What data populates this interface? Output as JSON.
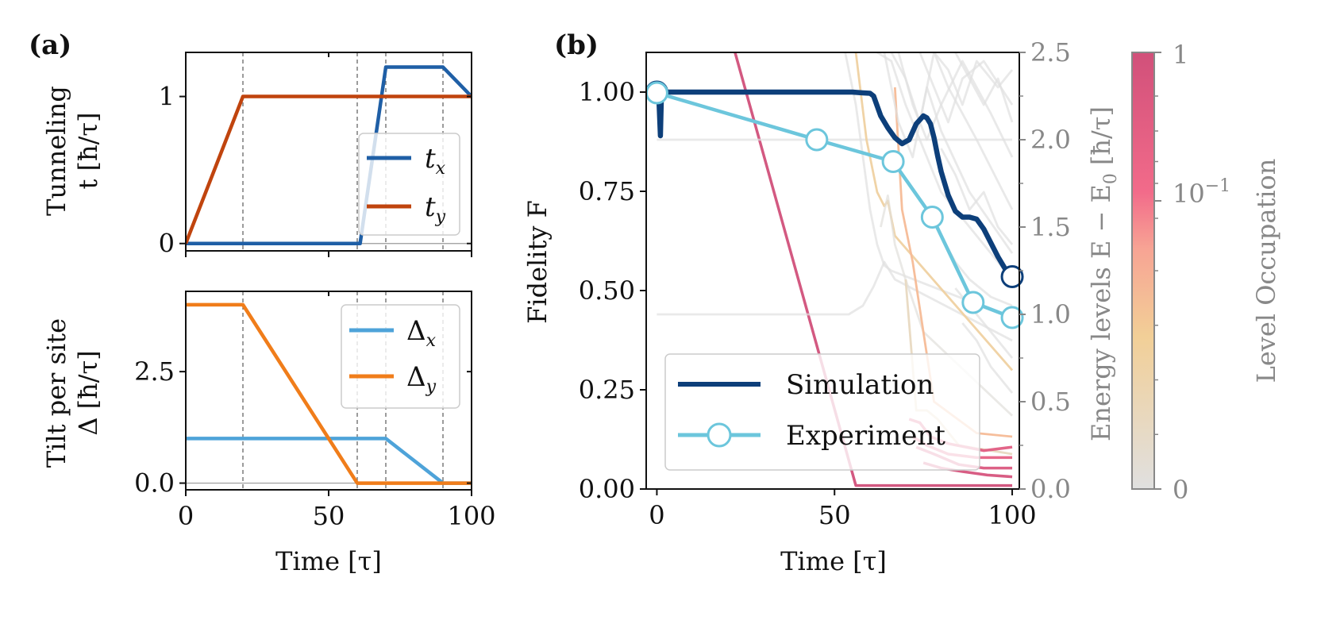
{
  "panels": {
    "a_label": "(a)",
    "b_label": "(b)"
  },
  "chart_data": [
    {
      "id": "tunneling",
      "type": "line",
      "panel": "(a)",
      "ylabel_line1": "Tunneling",
      "ylabel_line2": "t  [ħ/τ]",
      "xlim": [
        0,
        100
      ],
      "ylim": [
        -0.05,
        1.3
      ],
      "yticks": [
        0,
        1
      ],
      "ytick_labels": [
        "0",
        "1"
      ],
      "xticks": [
        0,
        50,
        100
      ],
      "xtick_labels": [
        "",
        "",
        ""
      ],
      "vlines": [
        20,
        60,
        70,
        90
      ],
      "series": [
        {
          "name": "t",
          "sub": "x",
          "color": "#1f5fa6",
          "x": [
            0,
            60,
            61,
            70,
            90,
            100
          ],
          "y": [
            0,
            0,
            0,
            1.2,
            1.2,
            1.0
          ]
        },
        {
          "name": "t",
          "sub": "y",
          "color": "#c0440e",
          "x": [
            0,
            20,
            100
          ],
          "y": [
            0,
            1,
            1
          ]
        }
      ],
      "legend": "right",
      "legend_labels": [
        "t",
        "t"
      ],
      "legend_subs": [
        "x",
        "y"
      ]
    },
    {
      "id": "tilt",
      "type": "line",
      "panel": "(a)",
      "ylabel_line1": "Tilt per site",
      "ylabel_line2": "Δ  [ħ/τ]",
      "xlabel": "Time  [τ]",
      "xlim": [
        0,
        100
      ],
      "ylim": [
        -0.15,
        4.3
      ],
      "yticks": [
        0,
        2.5
      ],
      "ytick_labels": [
        "0.0",
        "2.5"
      ],
      "xticks": [
        0,
        50,
        100
      ],
      "xtick_labels": [
        "0",
        "50",
        "100"
      ],
      "vlines": [
        20,
        60,
        70,
        90
      ],
      "series": [
        {
          "name": "Δ",
          "sub": "x",
          "color": "#4ea3d9",
          "x": [
            0,
            70,
            90,
            100
          ],
          "y": [
            1.0,
            1.0,
            0,
            0
          ]
        },
        {
          "name": "Δ",
          "sub": "y",
          "color": "#f07d1a",
          "x": [
            0,
            20,
            60,
            100
          ],
          "y": [
            4.0,
            4.0,
            0,
            0
          ]
        }
      ],
      "legend": "top-right",
      "legend_labels": [
        "Δ",
        "Δ"
      ],
      "legend_subs": [
        "x",
        "y"
      ]
    },
    {
      "id": "fidelity",
      "type": "line",
      "panel": "(b)",
      "ylabel": "Fidelity  F",
      "ylabel_right": "Energy levels  E − E",
      "ylabel_right_sub": "0",
      "ylabel_right_unit": "[ħ/τ]",
      "xlabel": "Time  [τ]",
      "xlim": [
        -3,
        102
      ],
      "ylim": [
        0,
        1.1
      ],
      "yticks": [
        0,
        0.25,
        0.5,
        0.75,
        1.0
      ],
      "ytick_labels": [
        "0.00",
        "0.25",
        "0.50",
        "0.75",
        "1.00"
      ],
      "y2lim": [
        0,
        2.5
      ],
      "y2ticks": [
        0,
        0.5,
        1.0,
        1.5,
        2.0,
        2.5
      ],
      "y2tick_labels": [
        "0.0",
        "0.5",
        "1.0",
        "1.5",
        "2.0",
        "2.5"
      ],
      "xticks": [
        0,
        50,
        100
      ],
      "xtick_labels": [
        "0",
        "50",
        "100"
      ],
      "series": [
        {
          "name": "Simulation",
          "color": "#0d3f7a",
          "x": [
            0,
            0.5,
            1,
            1.3,
            2,
            5,
            10,
            20,
            30,
            40,
            50,
            55,
            58,
            60,
            61,
            62,
            63,
            65,
            67,
            69,
            71,
            73,
            75,
            76,
            77,
            78,
            79,
            80,
            82,
            84,
            86,
            88,
            90,
            92,
            94,
            96,
            98,
            100
          ],
          "y": [
            1.0,
            1.0,
            0.89,
            1.0,
            1.0,
            1.0,
            1.0,
            1.0,
            1.0,
            1.0,
            1.0,
            1.0,
            0.998,
            0.997,
            0.99,
            0.965,
            0.94,
            0.91,
            0.885,
            0.87,
            0.88,
            0.92,
            0.94,
            0.935,
            0.92,
            0.885,
            0.84,
            0.8,
            0.74,
            0.7,
            0.685,
            0.685,
            0.68,
            0.655,
            0.62,
            0.585,
            0.555,
            0.535
          ]
        },
        {
          "name": "Experiment",
          "color": "#6cc6dc",
          "marker": "circle",
          "x": [
            0,
            45,
            66.5,
            77.5,
            89,
            100
          ],
          "y": [
            0.998,
            0.88,
            0.825,
            0.685,
            0.47,
            0.432
          ]
        }
      ],
      "sim_end_marker": {
        "x": 100,
        "y": 0.535
      },
      "legend": "bottom-left",
      "legend_labels": [
        "Simulation",
        "Experiment"
      ],
      "energy_levels": [
        {
          "x": [
            22,
            56,
            100
          ],
          "y": [
            2.5,
            0.02,
            0.02
          ],
          "occ": 1.0
        },
        {
          "x": [
            0,
            62,
            100
          ],
          "y": [
            2.0,
            2.0,
            2.0
          ],
          "occ": 0.0
        },
        {
          "x": [
            0,
            54,
            58,
            61,
            64,
            67,
            100
          ],
          "y": [
            1.0,
            1.0,
            1.05,
            1.16,
            1.3,
            1.2,
            0.85
          ],
          "occ": 0.0
        },
        {
          "x": [
            53,
            56,
            58,
            60,
            62,
            64,
            66,
            100
          ],
          "y": [
            2.5,
            2.2,
            1.9,
            1.6,
            1.4,
            1.28,
            1.25,
            0.98
          ],
          "occ": 0.0
        },
        {
          "x": [
            56,
            59,
            62,
            64,
            65,
            67,
            100
          ],
          "y": [
            2.5,
            2.0,
            1.7,
            1.62,
            1.65,
            1.45,
            0.68
          ],
          "occ": 0.3
        },
        {
          "x": [
            63,
            65,
            67,
            70,
            75,
            100
          ],
          "y": [
            1.5,
            1.68,
            1.4,
            1.2,
            0.9,
            0.42
          ],
          "occ": 0.02
        },
        {
          "x": [
            67,
            69,
            72,
            78,
            90,
            100
          ],
          "y": [
            2.3,
            1.6,
            1.3,
            0.5,
            0.32,
            0.3
          ],
          "occ": 0.45
        },
        {
          "x": [
            70,
            73,
            76,
            79,
            85,
            100
          ],
          "y": [
            1.2,
            0.45,
            0.45,
            0.4,
            0.25,
            0.2
          ],
          "occ": 0.15
        },
        {
          "x": [
            71,
            74,
            77,
            82,
            92,
            100
          ],
          "y": [
            0.4,
            0.38,
            0.3,
            0.26,
            0.22,
            0.24
          ],
          "occ": 0.85
        },
        {
          "x": [
            72,
            76,
            82,
            90,
            100
          ],
          "y": [
            0.3,
            0.25,
            0.2,
            0.18,
            0.18
          ],
          "occ": 0.8
        },
        {
          "x": [
            73,
            78,
            85,
            92,
            100
          ],
          "y": [
            0.24,
            0.2,
            0.14,
            0.12,
            0.12
          ],
          "occ": 0.9
        },
        {
          "x": [
            75,
            80,
            86,
            93,
            100
          ],
          "y": [
            0.15,
            0.12,
            0.1,
            0.08,
            0.07
          ],
          "occ": 0.95
        },
        {
          "x": [
            62,
            66,
            70,
            75,
            80,
            90,
            100
          ],
          "y": [
            2.5,
            2.45,
            2.2,
            1.95,
            1.7,
            1.45,
            1.2
          ],
          "occ": 0.0
        },
        {
          "x": [
            64,
            68,
            72,
            76,
            80,
            88,
            100
          ],
          "y": [
            2.5,
            2.1,
            1.9,
            2.3,
            2.05,
            1.7,
            1.35
          ],
          "occ": 0.0
        },
        {
          "x": [
            66,
            70,
            74,
            78,
            82,
            90,
            100
          ],
          "y": [
            2.5,
            2.35,
            2.1,
            2.5,
            2.3,
            2.0,
            1.6
          ],
          "occ": 0.0
        },
        {
          "x": [
            68,
            72,
            76,
            80,
            86,
            94,
            100
          ],
          "y": [
            2.5,
            2.2,
            2.0,
            2.2,
            2.45,
            2.15,
            1.9
          ],
          "occ": 0.0
        },
        {
          "x": [
            74,
            78,
            82,
            86,
            92,
            100
          ],
          "y": [
            2.5,
            2.3,
            2.1,
            2.35,
            2.45,
            2.2
          ],
          "occ": 0.0
        },
        {
          "x": [
            78,
            82,
            86,
            90,
            96,
            100
          ],
          "y": [
            2.5,
            2.4,
            2.2,
            2.45,
            2.3,
            2.4
          ],
          "occ": 0.0
        },
        {
          "x": [
            84,
            88,
            92,
            96,
            100
          ],
          "y": [
            2.5,
            2.35,
            2.2,
            2.35,
            2.1
          ],
          "occ": 0.0
        },
        {
          "x": [
            80,
            84,
            88,
            92,
            96,
            100
          ],
          "y": [
            1.95,
            1.8,
            1.6,
            1.7,
            1.5,
            1.4
          ],
          "occ": 0.0
        },
        {
          "x": [
            76,
            80,
            84,
            88,
            94,
            100
          ],
          "y": [
            1.6,
            1.45,
            1.3,
            1.2,
            1.1,
            1.05
          ],
          "occ": 0.0
        },
        {
          "x": [
            84,
            88,
            92,
            96,
            100
          ],
          "y": [
            1.15,
            1.05,
            0.95,
            0.85,
            0.75
          ],
          "occ": 0.0
        },
        {
          "x": [
            86,
            90,
            94,
            98,
            100
          ],
          "y": [
            0.95,
            0.85,
            0.7,
            0.6,
            0.55
          ],
          "occ": 0.0
        }
      ],
      "colorbar": {
        "label": "Level Occupation",
        "tick_labels": [
          "1",
          "10",
          "0"
        ],
        "tick_exp": "−1",
        "colors": [
          "#e0e0e0",
          "#f2cf97",
          "#f7a494",
          "#f26b8a",
          "#d1507a"
        ]
      }
    }
  ]
}
